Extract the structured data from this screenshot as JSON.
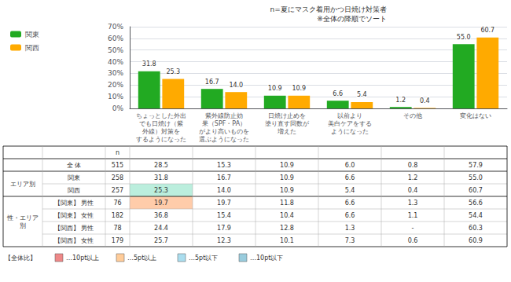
{
  "chart_data": {
    "type": "bar",
    "title": "n=夏にマスク着用かつ日焼け対策者",
    "subtitle": "※全体の降順でソート",
    "categories": [
      "ちょっとした外出\nでも日焼け（紫\n外線）対策を\nするようになった",
      "紫外線防止効\n果（SPF・PA）\nがより高いものを\n選ぶようになった",
      "日焼け止めを\n塗り直す回数が\n増えた",
      "以前より\n美白ケアをする\nようになった",
      "その他",
      "変化はない"
    ],
    "series": [
      {
        "name": "関東",
        "color": "#22AA22",
        "values": [
          31.8,
          16.7,
          10.9,
          6.6,
          1.2,
          55.0
        ],
        "value_labels": [
          "31.8",
          "16.7",
          "10.9",
          "6.6",
          "1.2",
          "55.0"
        ]
      },
      {
        "name": "関西",
        "color": "#FFAA00",
        "values": [
          25.3,
          14.0,
          10.9,
          5.4,
          0.4,
          60.7
        ],
        "value_labels": [
          "25.3",
          "14.0",
          "10.9",
          "5.4",
          "0.4",
          "60.7"
        ]
      }
    ],
    "ylim": [
      0,
      70
    ],
    "yticks": [
      {
        "value": 0,
        "label": "0%"
      },
      {
        "value": 10,
        "label": "10%"
      },
      {
        "value": 20,
        "label": "20%"
      },
      {
        "value": 30,
        "label": "30%"
      },
      {
        "value": 40,
        "label": "40%"
      },
      {
        "value": 50,
        "label": "50%"
      },
      {
        "value": 60,
        "label": "60%"
      },
      {
        "value": 70,
        "label": "70%"
      }
    ],
    "grid": true,
    "legend": "upper left",
    "data_labels": true,
    "table": {
      "header": "n",
      "row_groups": [
        null,
        "エリア別",
        "エリア別",
        "性・エリア\n別",
        "性・エリア\n別",
        "性・エリア\n別",
        "性・エリア\n別"
      ],
      "row_labels": [
        "全 体",
        "関東",
        "関西",
        "【関東】 男性",
        "【関東】 女性",
        "【関西】 男性",
        "【関西】 女性"
      ],
      "n": [
        515,
        258,
        257,
        76,
        182,
        78,
        179
      ],
      "columns": [
        {
          "values": [
            "28.5",
            "31.8",
            "25.3",
            "19.7",
            "36.8",
            "24.4",
            "25.7"
          ],
          "colors": [
            null,
            null,
            "#BBEEDD",
            "#FFCCAA",
            null,
            null,
            null
          ]
        },
        {
          "values": [
            "15.3",
            "16.7",
            "14.0",
            "19.7",
            "15.4",
            "17.9",
            "12.3"
          ]
        },
        {
          "values": [
            "10.9",
            "10.9",
            "10.9",
            "11.8",
            "10.4",
            "12.8",
            "10.1"
          ]
        },
        {
          "values": [
            "6.0",
            "6.6",
            "5.4",
            "6.6",
            "6.6",
            "1.3",
            "7.3"
          ]
        },
        {
          "values": [
            "0.8",
            "1.2",
            "0.4",
            "1.3",
            "1.1",
            "-",
            "0.6"
          ]
        },
        {
          "values": [
            "57.9",
            "55.0",
            "60.7",
            "56.6",
            "54.4",
            "60.3",
            "60.9"
          ]
        }
      ]
    },
    "footer": {
      "title": "【全体比】",
      "items": [
        {
          "label": "…10pt以上",
          "color": "#EE8888"
        },
        {
          "label": "…5pt以上",
          "color": "#FFCC99"
        },
        {
          "label": "…5pt以下",
          "color": "#AADDEE"
        },
        {
          "label": "…10pt以下",
          "color": "#99CCDD"
        }
      ]
    }
  }
}
